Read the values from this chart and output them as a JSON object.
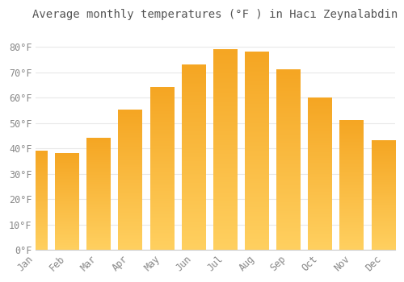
{
  "title": "Average monthly temperatures (°F ) in Hacı Zeynalabdin",
  "months": [
    "Jan",
    "Feb",
    "Mar",
    "Apr",
    "May",
    "Jun",
    "Jul",
    "Aug",
    "Sep",
    "Oct",
    "Nov",
    "Dec"
  ],
  "values": [
    39,
    38,
    44,
    55,
    64,
    73,
    79,
    78,
    71,
    60,
    51,
    43
  ],
  "bar_color_top": "#F5A623",
  "bar_color_bottom": "#FFD060",
  "background_color": "#FFFFFF",
  "plot_bg_color": "#FFFFFF",
  "grid_color": "#E8E8E8",
  "tick_label_color": "#888888",
  "title_color": "#555555",
  "ylim": [
    0,
    88
  ],
  "yticks": [
    0,
    10,
    20,
    30,
    40,
    50,
    60,
    70,
    80
  ],
  "ytick_labels": [
    "0°F",
    "10°F",
    "20°F",
    "30°F",
    "40°F",
    "50°F",
    "60°F",
    "70°F",
    "80°F"
  ],
  "title_fontsize": 10,
  "tick_fontsize": 8.5,
  "bar_width": 0.75
}
